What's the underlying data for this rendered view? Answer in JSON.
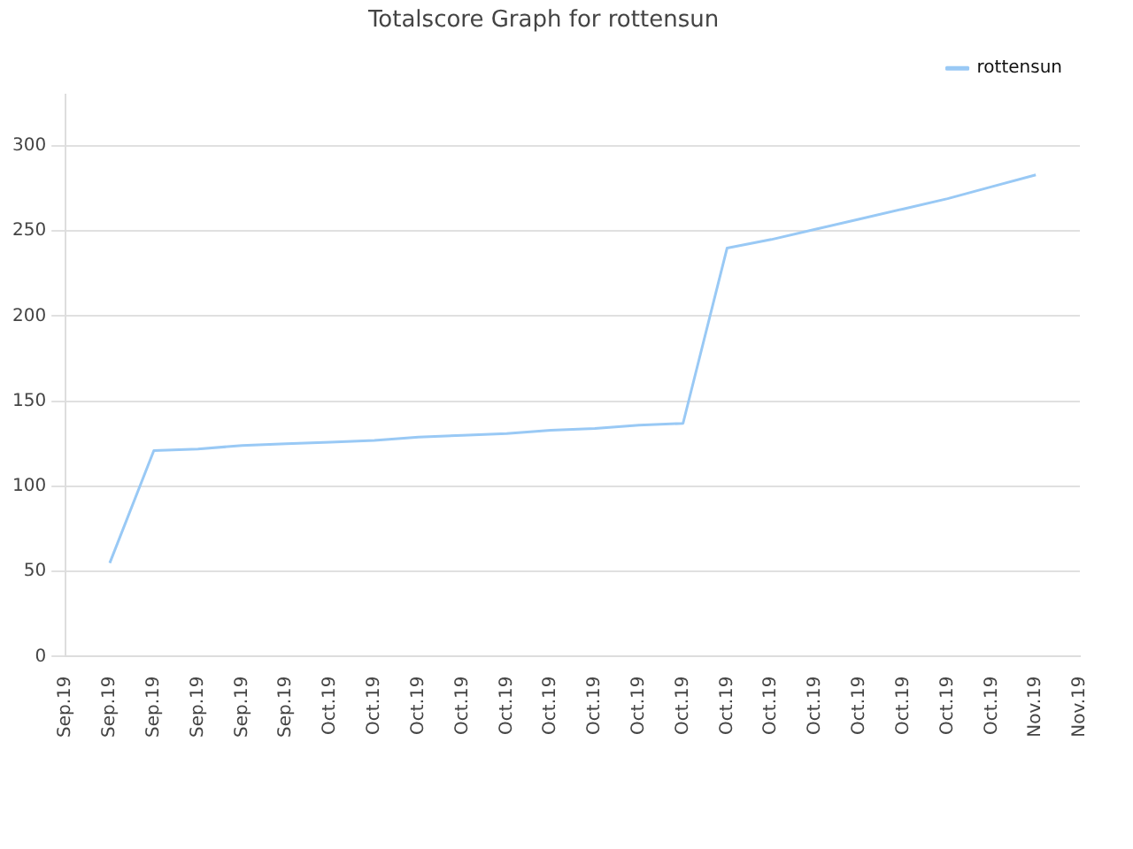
{
  "chart_data": {
    "type": "line",
    "title": "Totalscore Graph for rottensun",
    "categories": [
      "Sep.19",
      "Sep.19",
      "Sep.19",
      "Sep.19",
      "Sep.19",
      "Sep.19",
      "Oct.19",
      "Oct.19",
      "Oct.19",
      "Oct.19",
      "Oct.19",
      "Oct.19",
      "Oct.19",
      "Oct.19",
      "Oct.19",
      "Oct.19",
      "Oct.19",
      "Oct.19",
      "Oct.19",
      "Oct.19",
      "Oct.19",
      "Oct.19",
      "Nov.19",
      "Nov.19"
    ],
    "ylim": [
      0,
      330
    ],
    "yticks": [
      0,
      50,
      100,
      150,
      200,
      250,
      300
    ],
    "grid": "y",
    "legend": "top right",
    "marker": "none",
    "line_style": "solid",
    "series": [
      {
        "name": "rottensun",
        "color": "#99c9f5",
        "values": [
          null,
          55,
          121,
          122,
          124,
          125,
          126,
          127,
          129,
          130,
          131,
          133,
          134,
          136,
          137,
          240,
          245,
          251,
          257,
          263,
          269,
          276,
          283,
          null
        ]
      }
    ]
  }
}
